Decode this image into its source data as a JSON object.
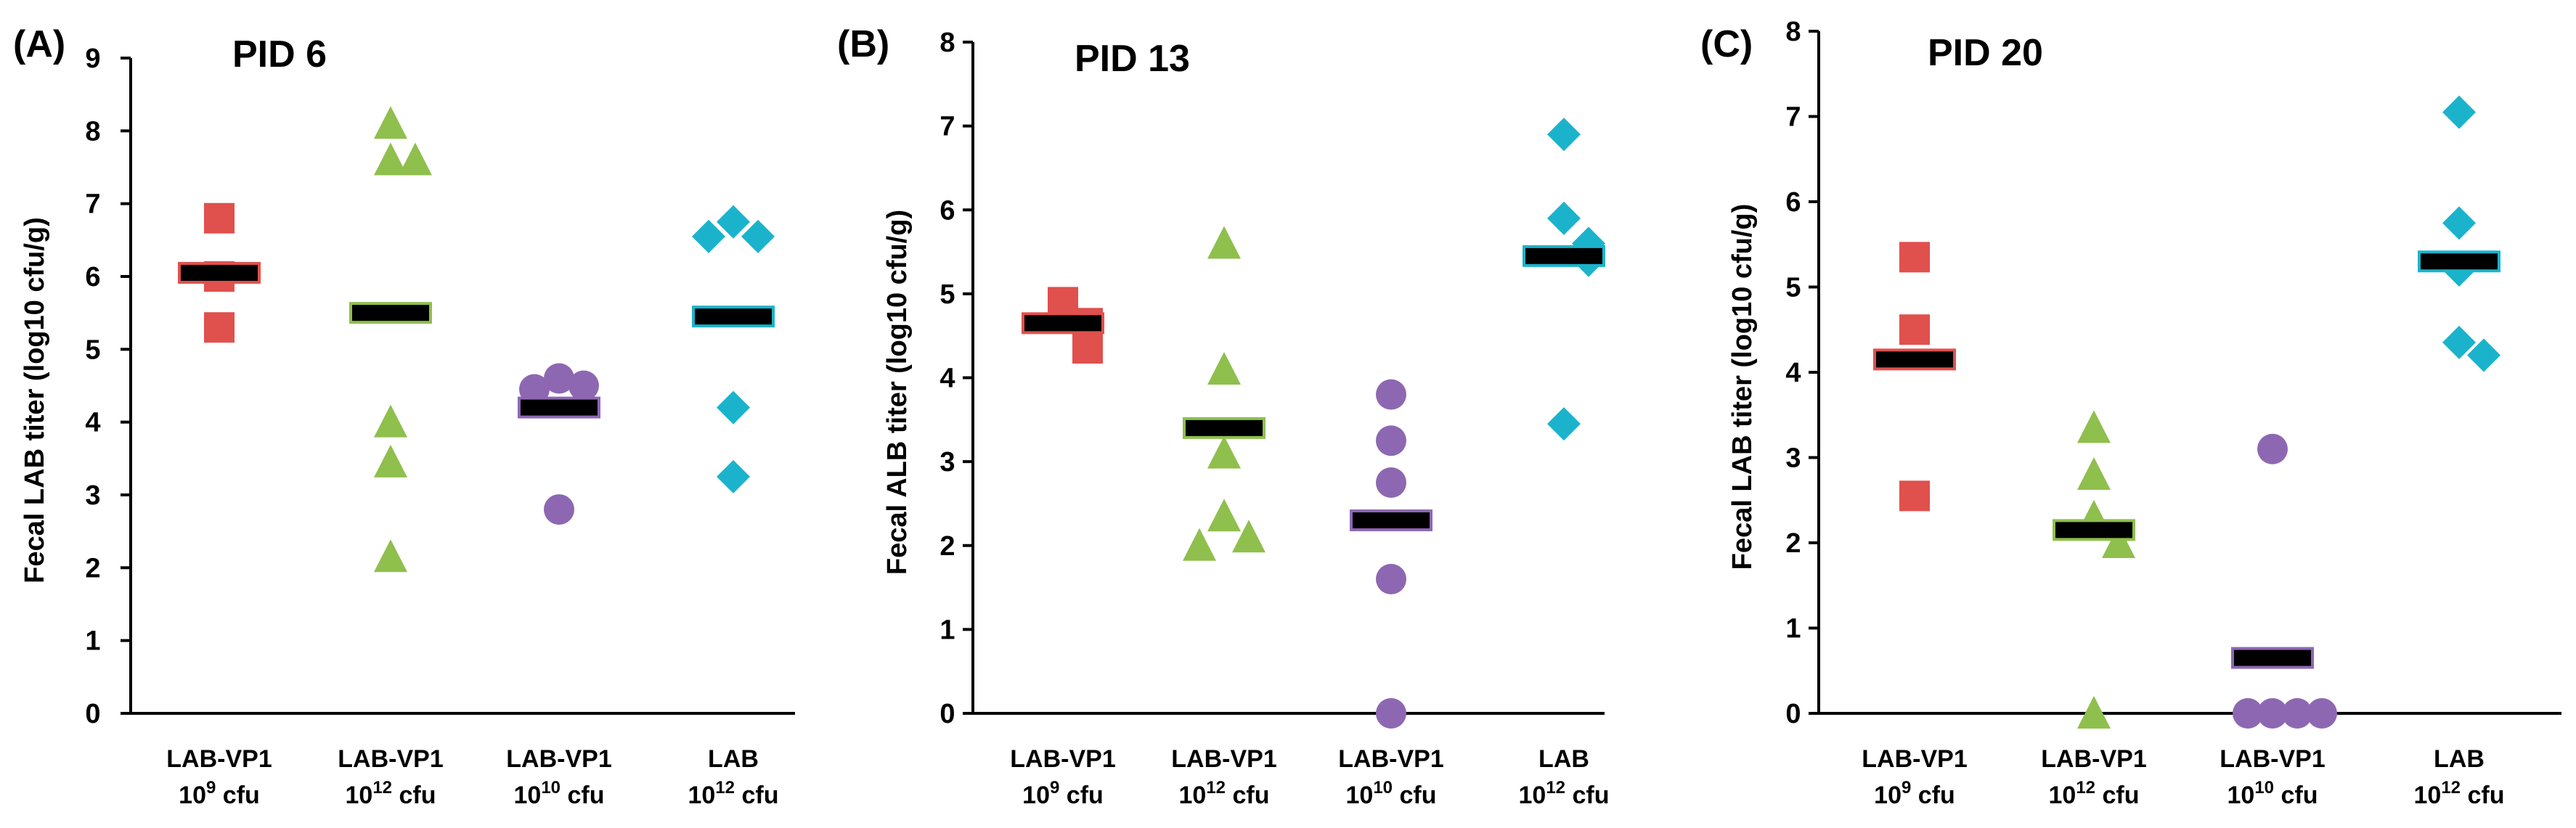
{
  "chart_data": [
    {
      "type": "scatter",
      "panel_letter": "(A)",
      "title": "PID 6",
      "ylabel": "Fecal LAB titer (log10 cfu/g)",
      "ylim": [
        0,
        9
      ],
      "yticks": [
        0,
        1,
        2,
        3,
        4,
        5,
        6,
        7,
        8,
        9
      ],
      "groups": [
        {
          "name": "LAB-VP1",
          "dose_base": "10",
          "dose_exp": "9",
          "dose_unit": " cfu",
          "marker": "square",
          "color": "#e0504d",
          "values": [
            6.8,
            6.0,
            5.3
          ],
          "mean": 6.05
        },
        {
          "name": "LAB-VP1",
          "dose_base": "10",
          "dose_exp": "12",
          "dose_unit": " cfu",
          "marker": "triangle",
          "color": "#8fbf4d",
          "values": [
            8.1,
            7.6,
            7.6,
            4.0,
            3.45,
            2.15
          ],
          "mean": 5.5
        },
        {
          "name": "LAB-VP1",
          "dose_base": "10",
          "dose_exp": "10",
          "dose_unit": " cfu",
          "marker": "circle",
          "color": "#8e67b2",
          "values": [
            4.6,
            4.5,
            4.45,
            2.8
          ],
          "mean": 4.2
        },
        {
          "name": "LAB",
          "dose_base": "10",
          "dose_exp": "12",
          "dose_unit": " cfu",
          "marker": "diamond",
          "color": "#1bb3cc",
          "values": [
            6.75,
            6.55,
            6.55,
            4.2,
            3.25
          ],
          "mean": 5.45
        }
      ]
    },
    {
      "type": "scatter",
      "panel_letter": "(B)",
      "title": "PID 13",
      "ylabel": "Fecal ALB titer (log10 cfu/g)",
      "ylim": [
        0,
        8
      ],
      "yticks": [
        0,
        1,
        2,
        3,
        4,
        5,
        6,
        7,
        8
      ],
      "groups": [
        {
          "name": "LAB-VP1",
          "dose_base": "10",
          "dose_exp": "9",
          "dose_unit": " cfu",
          "marker": "square",
          "color": "#e0504d",
          "values": [
            4.9,
            4.65,
            4.35
          ],
          "mean": 4.65
        },
        {
          "name": "LAB-VP1",
          "dose_base": "10",
          "dose_exp": "12",
          "dose_unit": " cfu",
          "marker": "triangle",
          "color": "#8fbf4d",
          "values": [
            5.6,
            4.1,
            3.1,
            2.35,
            2.1,
            2.0
          ],
          "mean": 3.4
        },
        {
          "name": "LAB-VP1",
          "dose_base": "10",
          "dose_exp": "10",
          "dose_unit": " cfu",
          "marker": "circle",
          "color": "#8e67b2",
          "values": [
            3.8,
            3.25,
            2.75,
            1.6,
            0.0
          ],
          "mean": 2.3
        },
        {
          "name": "LAB",
          "dose_base": "10",
          "dose_exp": "12",
          "dose_unit": " cfu",
          "marker": "diamond",
          "color": "#1bb3cc",
          "values": [
            6.9,
            5.9,
            5.6,
            5.4,
            3.45
          ],
          "mean": 5.45
        }
      ]
    },
    {
      "type": "scatter",
      "panel_letter": "(C)",
      "title": "PID 20",
      "ylabel": "Fecal LAB titer (log10 cfu/g)",
      "ylim": [
        0,
        8
      ],
      "yticks": [
        0,
        1,
        2,
        3,
        4,
        5,
        6,
        7,
        8
      ],
      "groups": [
        {
          "name": "LAB-VP1",
          "dose_base": "10",
          "dose_exp": "9",
          "dose_unit": " cfu",
          "marker": "square",
          "color": "#e0504d",
          "values": [
            5.35,
            4.5,
            2.55
          ],
          "mean": 4.15
        },
        {
          "name": "LAB-VP1",
          "dose_base": "10",
          "dose_exp": "12",
          "dose_unit": " cfu",
          "marker": "triangle",
          "color": "#8fbf4d",
          "values": [
            3.35,
            2.8,
            2.3,
            2.0,
            0.0
          ],
          "mean": 2.15
        },
        {
          "name": "LAB-VP1",
          "dose_base": "10",
          "dose_exp": "10",
          "dose_unit": " cfu",
          "marker": "circle",
          "color": "#8e67b2",
          "values": [
            3.1,
            0.0,
            0.0,
            0.0,
            0.0
          ],
          "mean": 0.65
        },
        {
          "name": "LAB",
          "dose_base": "10",
          "dose_exp": "12",
          "dose_unit": " cfu",
          "marker": "diamond",
          "color": "#1bb3cc",
          "values": [
            7.05,
            5.75,
            5.2,
            4.35,
            4.2
          ],
          "mean": 5.3
        }
      ]
    }
  ]
}
